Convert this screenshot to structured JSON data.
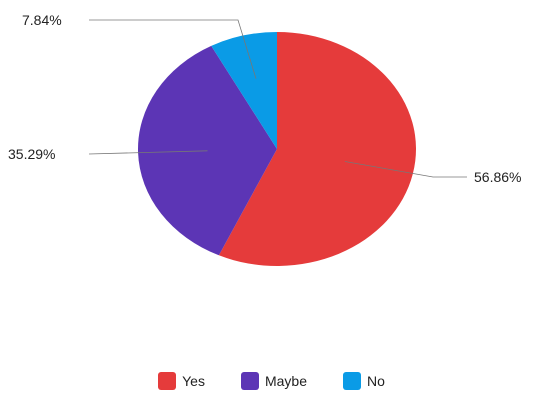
{
  "chart_data": {
    "type": "pie",
    "categories": [
      "Yes",
      "Maybe",
      "No"
    ],
    "values": [
      56.86,
      35.29,
      7.84
    ],
    "labels": [
      "56.86%",
      "35.29%",
      "7.84%"
    ],
    "colors": [
      "#E53B3B",
      "#5C35B5",
      "#0A9BE6"
    ],
    "start_angle": "top, clockwise",
    "legend_position": "bottom-center"
  }
}
